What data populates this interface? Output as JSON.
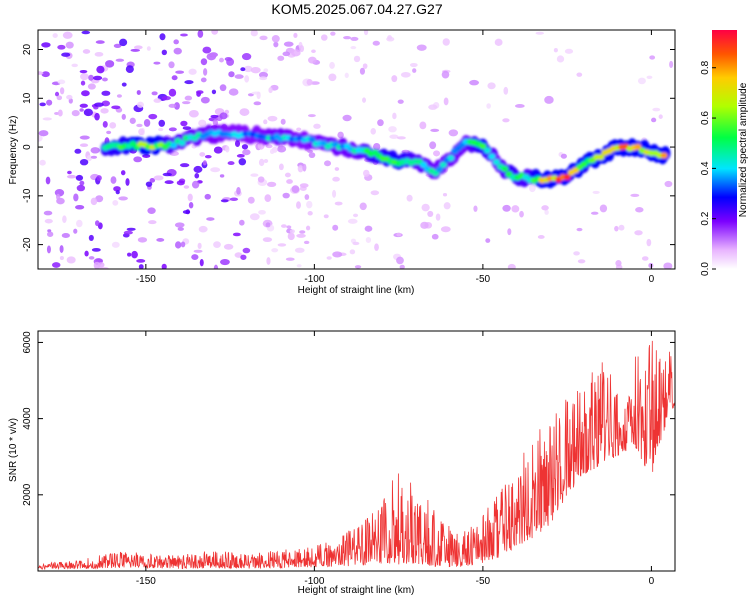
{
  "title": "KOM5.2025.067.04.27.G27",
  "chart_data": [
    {
      "type": "heatmap",
      "xlabel": "Height of straight line (km)",
      "ylabel": "Frequency (Hz)",
      "xlim": [
        -182,
        7
      ],
      "ylim": [
        -25,
        24
      ],
      "x_ticks": [
        -150,
        -100,
        -50,
        0
      ],
      "y_ticks": [
        -20,
        -10,
        0,
        10,
        20
      ],
      "colorbar": {
        "label": "Normalized spectral amplitude",
        "range": [
          0,
          0.95
        ],
        "ticks": [
          0.0,
          0.2,
          0.4,
          0.6,
          0.8
        ]
      },
      "ridge": [
        {
          "x": -162,
          "y": 0.0,
          "a": 0.55
        },
        {
          "x": -155,
          "y": 0.4,
          "a": 0.6
        },
        {
          "x": -148,
          "y": 0.3,
          "a": 0.7
        },
        {
          "x": -143,
          "y": 0.5,
          "a": 0.5
        },
        {
          "x": -133,
          "y": 2.5,
          "a": 0.45
        },
        {
          "x": -126,
          "y": 2.8,
          "a": 0.4
        },
        {
          "x": -118,
          "y": 2.5,
          "a": 0.4
        },
        {
          "x": -110,
          "y": 2.0,
          "a": 0.45
        },
        {
          "x": -103,
          "y": 1.5,
          "a": 0.4
        },
        {
          "x": -96,
          "y": 0.5,
          "a": 0.45
        },
        {
          "x": -88,
          "y": -0.5,
          "a": 0.45
        },
        {
          "x": -82,
          "y": -1.5,
          "a": 0.55
        },
        {
          "x": -75,
          "y": -3.0,
          "a": 0.6
        },
        {
          "x": -70,
          "y": -3.0,
          "a": 0.5
        },
        {
          "x": -64,
          "y": -5.0,
          "a": 0.45
        },
        {
          "x": -55,
          "y": 1.0,
          "a": 0.45
        },
        {
          "x": -50,
          "y": 0.5,
          "a": 0.6
        },
        {
          "x": -46,
          "y": -3.0,
          "a": 0.45
        },
        {
          "x": -41,
          "y": -6.0,
          "a": 0.55
        },
        {
          "x": -36,
          "y": -6.5,
          "a": 0.5
        },
        {
          "x": -30,
          "y": -6.5,
          "a": 0.9
        },
        {
          "x": -25,
          "y": -6.0,
          "a": 0.9
        },
        {
          "x": -20,
          "y": -3.5,
          "a": 0.6
        },
        {
          "x": -15,
          "y": -2.0,
          "a": 0.7
        },
        {
          "x": -10,
          "y": 0.0,
          "a": 0.85
        },
        {
          "x": -4,
          "y": 0.0,
          "a": 0.85
        },
        {
          "x": 0,
          "y": -1.0,
          "a": 0.7
        },
        {
          "x": 5,
          "y": -2.0,
          "a": 0.85
        }
      ]
    },
    {
      "type": "line",
      "xlabel": "Height of straight line (km)",
      "ylabel": "SNR (10 * v/v)",
      "xlim": [
        -182,
        7
      ],
      "ylim": [
        0,
        6300
      ],
      "x_ticks": [
        -150,
        -100,
        -50,
        0
      ],
      "y_ticks": [
        2000,
        4000,
        6000
      ],
      "color": "#ee3333",
      "envelope": [
        {
          "x": -182,
          "lo": 50,
          "hi": 200
        },
        {
          "x": -170,
          "lo": 60,
          "hi": 280
        },
        {
          "x": -160,
          "lo": 80,
          "hi": 500
        },
        {
          "x": -150,
          "lo": 80,
          "hi": 500
        },
        {
          "x": -140,
          "lo": 60,
          "hi": 420
        },
        {
          "x": -130,
          "lo": 70,
          "hi": 550
        },
        {
          "x": -120,
          "lo": 60,
          "hi": 450
        },
        {
          "x": -110,
          "lo": 80,
          "hi": 550
        },
        {
          "x": -100,
          "lo": 100,
          "hi": 650
        },
        {
          "x": -92,
          "lo": 120,
          "hi": 900
        },
        {
          "x": -85,
          "lo": 150,
          "hi": 1500
        },
        {
          "x": -80,
          "lo": 200,
          "hi": 2000
        },
        {
          "x": -74,
          "lo": 150,
          "hi": 3000
        },
        {
          "x": -70,
          "lo": 200,
          "hi": 2300
        },
        {
          "x": -64,
          "lo": 100,
          "hi": 1600
        },
        {
          "x": -58,
          "lo": 100,
          "hi": 1000
        },
        {
          "x": -52,
          "lo": 150,
          "hi": 1300
        },
        {
          "x": -46,
          "lo": 300,
          "hi": 2000
        },
        {
          "x": -42,
          "lo": 500,
          "hi": 2500
        },
        {
          "x": -36,
          "lo": 800,
          "hi": 3400
        },
        {
          "x": -30,
          "lo": 1200,
          "hi": 4300
        },
        {
          "x": -25,
          "lo": 2000,
          "hi": 4600
        },
        {
          "x": -20,
          "lo": 2500,
          "hi": 5200
        },
        {
          "x": -15,
          "lo": 2800,
          "hi": 5500
        },
        {
          "x": -10,
          "lo": 3000,
          "hi": 5400
        },
        {
          "x": -5,
          "lo": 3300,
          "hi": 5600
        },
        {
          "x": 0,
          "lo": 2400,
          "hi": 6300
        },
        {
          "x": 3,
          "lo": 3500,
          "hi": 6000
        },
        {
          "x": 7,
          "lo": 4400,
          "hi": 5600
        }
      ]
    }
  ]
}
